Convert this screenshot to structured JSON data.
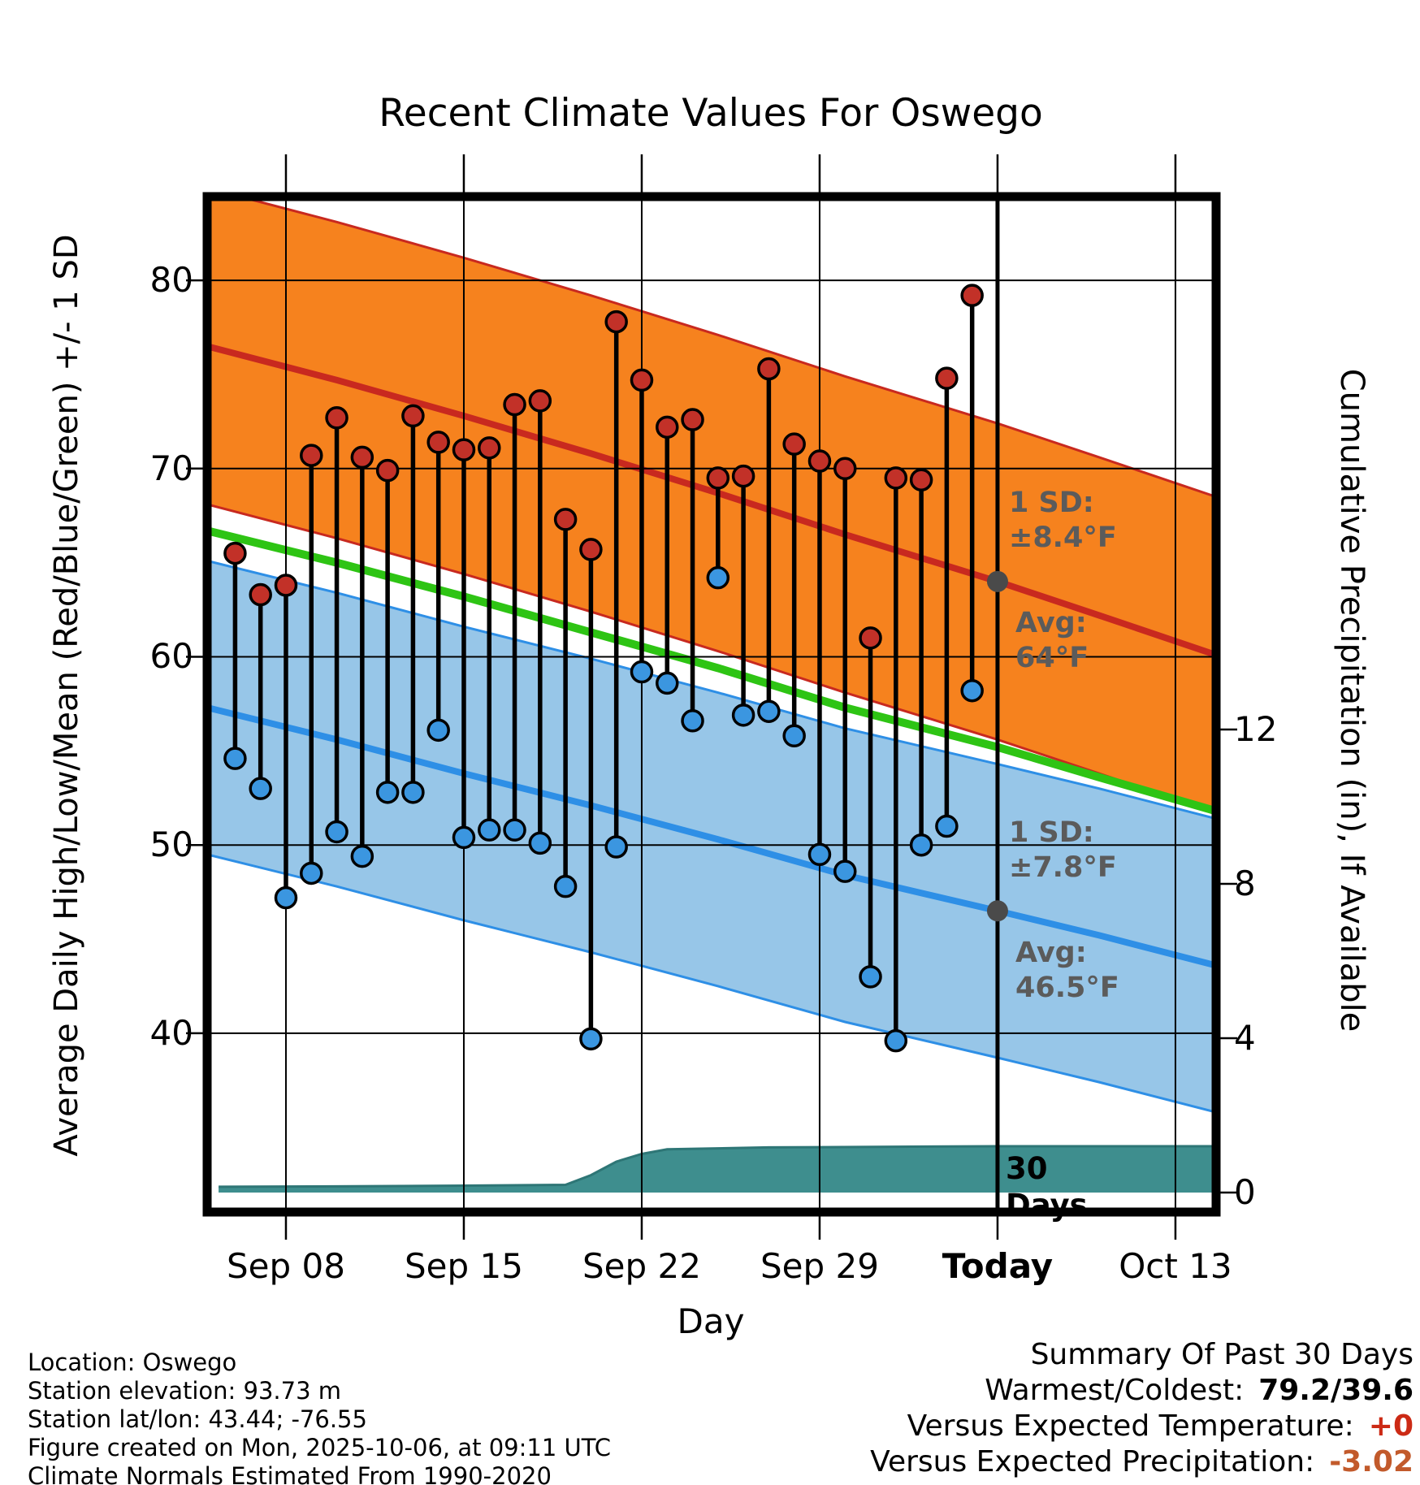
{
  "title": "Recent Climate Values For Oswego",
  "axes": {
    "x_label": "Day",
    "y_left_label": "Average Daily High/Low/Mean (Red/Blue/Green) +/- 1 SD",
    "y_right_label": "Cumulative Precipitation (in), If Available"
  },
  "annotations": {
    "high_sd_label": "1 SD:",
    "high_sd_value": "±8.4°F",
    "high_avg_label": "Avg:",
    "high_avg_value": "64°F",
    "low_sd_label": "1 SD:",
    "low_sd_value": "±7.8°F",
    "low_avg_label": "Avg:",
    "low_avg_value": "46.5°F",
    "days_count": "30",
    "days_word": "Days"
  },
  "footer": {
    "location": "Location: Oswego",
    "elevation": "Station elevation: 93.73 m",
    "latlon": "Station lat/lon: 43.44; -76.55",
    "created": "Figure created on Mon, 2025-10-06, at 09:11 UTC",
    "normals": "Climate Normals Estimated From 1990-2020"
  },
  "summary": {
    "heading": "Summary Of Past 30 Days",
    "warmcold_label": "Warmest/Coldest:",
    "warmcold_value": "79.2/39.6",
    "vs_temp_label": "Versus Expected Temperature:",
    "vs_temp_value": "+0",
    "vs_precip_label": "Versus Expected Precipitation:",
    "vs_precip_value": "-3.02"
  },
  "chart_data": {
    "type": "line",
    "title": "Recent Climate Values For Oswego",
    "xlabel": "Day",
    "ylabel_left": "Average Daily High/Low/Mean (Red/Blue/Green) +/- 1 SD",
    "ylabel_right": "Cumulative Precipitation (in), If Available",
    "x_domain": [
      -0.1,
      39.6
    ],
    "y_left_domain": [
      30.5,
      84.45
    ],
    "y_left_ticks": [
      80,
      70,
      60,
      50,
      40
    ],
    "y_right_ticks": [
      0,
      4,
      8,
      12
    ],
    "x_ticks": [
      {
        "label": "Sep 08",
        "day": 3
      },
      {
        "label": "Sep 15",
        "day": 10
      },
      {
        "label": "Sep 22",
        "day": 17
      },
      {
        "label": "Sep 29",
        "day": 24
      },
      {
        "label": "Today",
        "day": 31,
        "bold": true
      },
      {
        "label": "Oct 13",
        "day": 38
      }
    ],
    "today_day": 31,
    "daily": [
      {
        "date": "Sep 06",
        "day": 1,
        "high": 65.5,
        "low": 54.6
      },
      {
        "date": "Sep 07",
        "day": 2,
        "high": 63.3,
        "low": 53.0
      },
      {
        "date": "Sep 08",
        "day": 3,
        "high": 63.8,
        "low": 47.2
      },
      {
        "date": "Sep 09",
        "day": 4,
        "high": 70.7,
        "low": 48.5
      },
      {
        "date": "Sep 10",
        "day": 5,
        "high": 72.7,
        "low": 50.7
      },
      {
        "date": "Sep 11",
        "day": 6,
        "high": 70.6,
        "low": 49.4
      },
      {
        "date": "Sep 12",
        "day": 7,
        "high": 69.9,
        "low": 52.8
      },
      {
        "date": "Sep 13",
        "day": 8,
        "high": 72.8,
        "low": 52.8
      },
      {
        "date": "Sep 14",
        "day": 9,
        "high": 71.4,
        "low": 56.1
      },
      {
        "date": "Sep 15",
        "day": 10,
        "high": 71.0,
        "low": 50.4
      },
      {
        "date": "Sep 16",
        "day": 11,
        "high": 71.1,
        "low": 50.8
      },
      {
        "date": "Sep 17",
        "day": 12,
        "high": 73.4,
        "low": 50.8
      },
      {
        "date": "Sep 18",
        "day": 13,
        "high": 73.6,
        "low": 50.1
      },
      {
        "date": "Sep 19",
        "day": 14,
        "high": 67.3,
        "low": 47.8
      },
      {
        "date": "Sep 20",
        "day": 15,
        "high": 65.7,
        "low": 39.7
      },
      {
        "date": "Sep 21",
        "day": 16,
        "high": 77.8,
        "low": 49.9
      },
      {
        "date": "Sep 22",
        "day": 17,
        "high": 74.7,
        "low": 59.2
      },
      {
        "date": "Sep 23",
        "day": 18,
        "high": 72.2,
        "low": 58.6
      },
      {
        "date": "Sep 24",
        "day": 19,
        "high": 72.6,
        "low": 56.6
      },
      {
        "date": "Sep 25",
        "day": 20,
        "high": 69.5,
        "low": 64.2
      },
      {
        "date": "Sep 26",
        "day": 21,
        "high": 69.6,
        "low": 56.9
      },
      {
        "date": "Sep 27",
        "day": 22,
        "high": 75.3,
        "low": 57.1
      },
      {
        "date": "Sep 28",
        "day": 23,
        "high": 71.3,
        "low": 55.8
      },
      {
        "date": "Sep 29",
        "day": 24,
        "high": 70.4,
        "low": 49.5
      },
      {
        "date": "Sep 30",
        "day": 25,
        "high": 70.0,
        "low": 48.6
      },
      {
        "date": "Oct 01",
        "day": 26,
        "high": 61.0,
        "low": 43.0
      },
      {
        "date": "Oct 02",
        "day": 27,
        "high": 69.5,
        "low": 39.6
      },
      {
        "date": "Oct 03",
        "day": 28,
        "high": 69.4,
        "low": 50.0
      },
      {
        "date": "Oct 04",
        "day": 29,
        "high": 74.8,
        "low": 51.0
      },
      {
        "date": "Oct 05",
        "day": 30,
        "high": 79.2,
        "low": 58.2
      }
    ],
    "normals": {
      "high_avg_today": 64,
      "high_sd": 8.4,
      "low_avg_today": 46.5,
      "low_sd": 7.8,
      "high_line": [
        [
          -0.1,
          76.5
        ],
        [
          5,
          74.7
        ],
        [
          10,
          72.8
        ],
        [
          15,
          70.8
        ],
        [
          20,
          68.7
        ],
        [
          25,
          66.5
        ],
        [
          31,
          64.0
        ],
        [
          35,
          62.2
        ],
        [
          39.6,
          60.1
        ]
      ],
      "low_line": [
        [
          -0.1,
          57.3
        ],
        [
          5,
          55.6
        ],
        [
          10,
          53.8
        ],
        [
          15,
          52.1
        ],
        [
          20,
          50.3
        ],
        [
          25,
          48.4
        ],
        [
          31,
          46.5
        ],
        [
          35,
          45.2
        ],
        [
          39.6,
          43.6
        ]
      ],
      "mean_line": [
        [
          -0.1,
          66.7
        ],
        [
          5,
          65.0
        ],
        [
          10,
          63.2
        ],
        [
          15,
          61.3
        ],
        [
          20,
          59.4
        ],
        [
          25,
          57.3
        ],
        [
          31,
          55.2
        ],
        [
          35,
          53.6
        ],
        [
          39.6,
          51.8
        ]
      ]
    },
    "precip_cumulative": [
      [
        0.35,
        0.15
      ],
      [
        5,
        0.16
      ],
      [
        10,
        0.18
      ],
      [
        14,
        0.2
      ],
      [
        15,
        0.45
      ],
      [
        16,
        0.8
      ],
      [
        17,
        1.0
      ],
      [
        18,
        1.12
      ],
      [
        22,
        1.17
      ],
      [
        31,
        1.2
      ],
      [
        39.6,
        1.2
      ]
    ],
    "colors": {
      "high_band_fill": "#F6821E",
      "high_line": "#C8291F",
      "low_band_fill": "#97C6E8",
      "low_line": "#2E8FE6",
      "mean_line": "#2EC414",
      "precip_fill": "#3E8E8E",
      "precip_edge": "#2E7676",
      "high_dot": "#C23128",
      "low_dot": "#3B96E0",
      "avg_dot": "#4A4A4A",
      "grid": "#000000",
      "annotation_text": "#5B5B5B",
      "vs_temp_value_color": "#CC2A15",
      "vs_precip_value_color": "#C25A2B"
    }
  }
}
